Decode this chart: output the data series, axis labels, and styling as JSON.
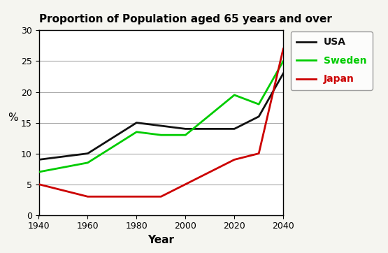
{
  "title": "Proportion of Population aged 65 years and over",
  "xlabel": "Year",
  "ylabel": "%",
  "years": [
    1940,
    1960,
    1980,
    1990,
    2000,
    2020,
    2030,
    2040
  ],
  "usa": [
    9,
    10,
    15,
    14.5,
    14,
    14,
    16,
    23
  ],
  "sweden": [
    7,
    8.5,
    13.5,
    13,
    13,
    19.5,
    18,
    25
  ],
  "japan": [
    5,
    3,
    3,
    3,
    5,
    9,
    10,
    27
  ],
  "usa_color": "#111111",
  "sweden_color": "#00cc00",
  "japan_color": "#cc0000",
  "ylim": [
    0,
    30
  ],
  "xlim": [
    1940,
    2040
  ],
  "xticks": [
    1940,
    1960,
    1980,
    2000,
    2020,
    2040
  ],
  "yticks": [
    0,
    5,
    10,
    15,
    20,
    25,
    30
  ],
  "background_color": "#f5f5f0",
  "plot_bg": "#ffffff",
  "legend_labels": [
    "USA",
    "Sweden",
    "Japan"
  ],
  "legend_colors": [
    "#111111",
    "#00cc00",
    "#cc0000"
  ]
}
